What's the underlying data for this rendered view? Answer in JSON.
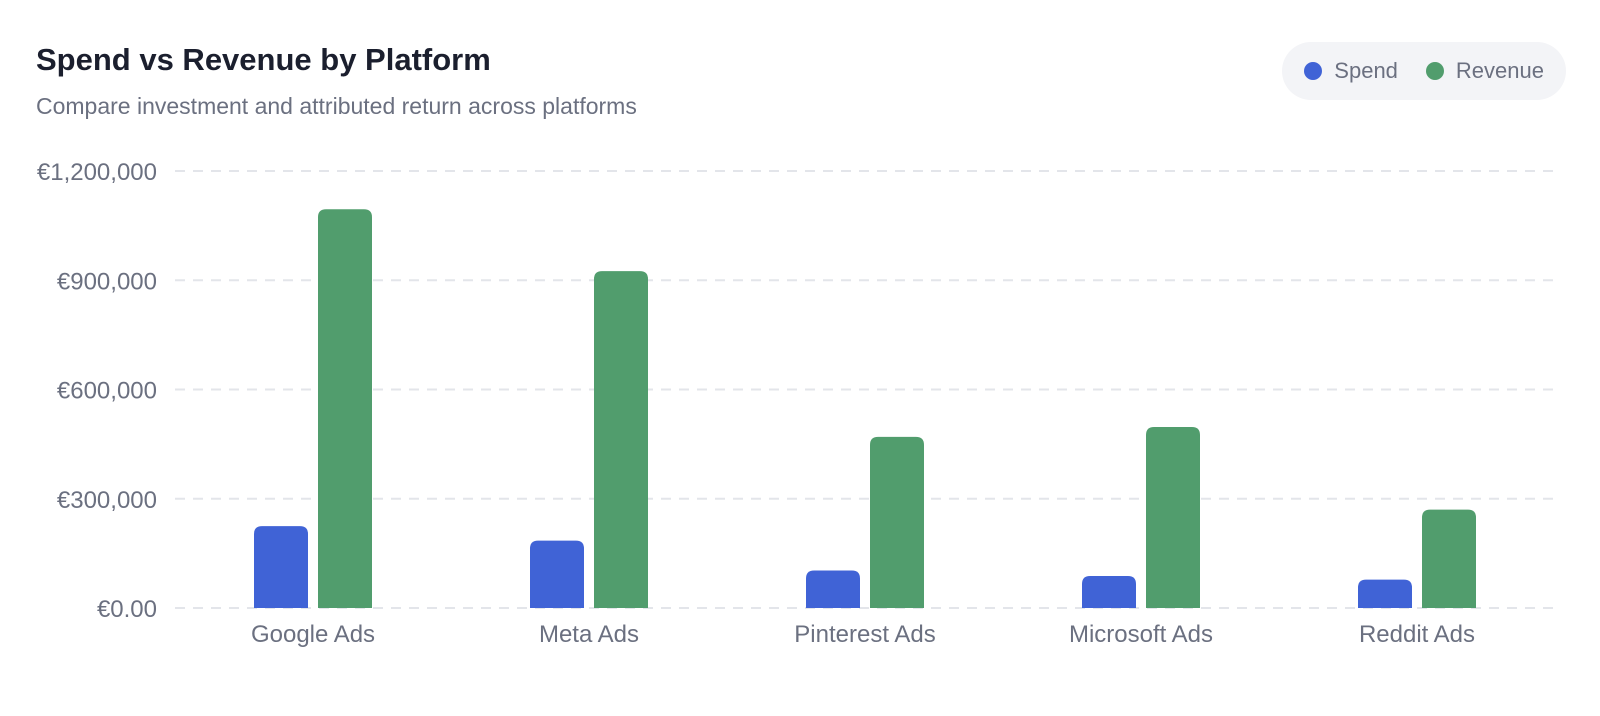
{
  "header": {
    "title": "Spend vs Revenue by Platform",
    "subtitle": "Compare investment and attributed return across platforms"
  },
  "legend": [
    {
      "label": "Spend",
      "color": "#4063d6"
    },
    {
      "label": "Revenue",
      "color": "#519d6d"
    }
  ],
  "chart_data": {
    "type": "bar",
    "title": "Spend vs Revenue by Platform",
    "subtitle": "Compare investment and attributed return across platforms",
    "categories": [
      "Google Ads",
      "Meta Ads",
      "Pinterest Ads",
      "Microsoft Ads",
      "Reddit Ads"
    ],
    "series": [
      {
        "name": "Spend",
        "color": "#4063d6",
        "values": [
          225000,
          185000,
          103000,
          88000,
          78000
        ]
      },
      {
        "name": "Revenue",
        "color": "#519d6d",
        "values": [
          1095000,
          925000,
          470000,
          497000,
          270000
        ]
      }
    ],
    "y_ticks": [
      "€0.00",
      "€300,000",
      "€600,000",
      "€900,000",
      "€1,200,000"
    ],
    "y_tick_values": [
      0,
      300000,
      600000,
      900000,
      1200000
    ],
    "ylim": [
      0,
      1200000
    ],
    "grid": true,
    "legend_position": "top-right"
  }
}
